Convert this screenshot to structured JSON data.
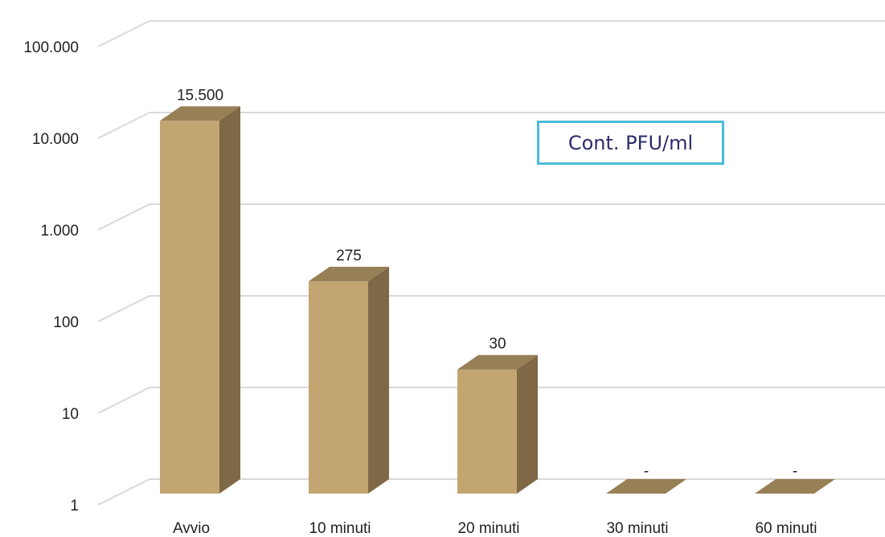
{
  "chart_data": {
    "type": "bar",
    "style": "3d-column",
    "y_scale": "log",
    "ylim": [
      1,
      100000
    ],
    "y_ticks": [
      1,
      10,
      100,
      1000,
      10000,
      100000
    ],
    "y_tick_labels": [
      "1",
      "10",
      "100",
      "1.000",
      "10.000",
      "100.000"
    ],
    "categories": [
      "Avvio",
      "10 minuti",
      "20 minuti",
      "30 minuti",
      "60 minuti"
    ],
    "values": [
      15500,
      275,
      30,
      null,
      null
    ],
    "data_labels": [
      "15.500",
      "275",
      "30",
      "-",
      "-"
    ],
    "legend": "Cont. PFU/ml",
    "legend_position": "top-right",
    "grid": true,
    "colors": {
      "bar_front": "#c2a571",
      "bar_side": "#7e6845",
      "bar_top": "#977f56",
      "grid": "#d9d9d9",
      "legend_border": "#4bbcd8",
      "legend_text": "#2b2b6b"
    }
  }
}
